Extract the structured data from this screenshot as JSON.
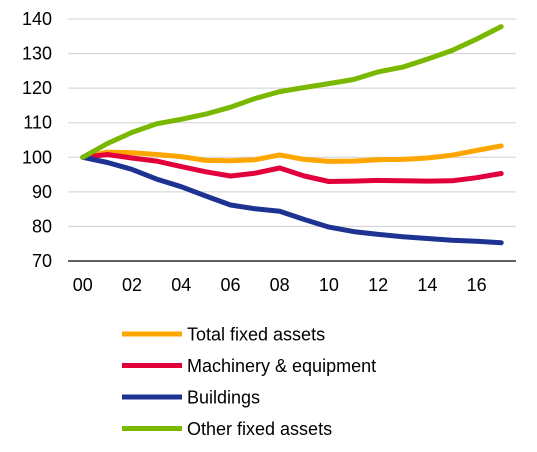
{
  "chart_data": {
    "type": "line",
    "title": "",
    "xlabel": "",
    "ylabel": "",
    "x": [
      0,
      1,
      2,
      3,
      4,
      5,
      6,
      7,
      8,
      9,
      10,
      11,
      12,
      13,
      14,
      15,
      16,
      17
    ],
    "x_tick_values": [
      0,
      2,
      4,
      6,
      8,
      10,
      12,
      14,
      16
    ],
    "x_tick_labels": [
      "00",
      "02",
      "04",
      "06",
      "08",
      "10",
      "12",
      "14",
      "16"
    ],
    "xlim": [
      -0.6,
      17.6
    ],
    "y_ticks": [
      70,
      80,
      90,
      100,
      110,
      120,
      130,
      140
    ],
    "ylim": [
      70,
      140
    ],
    "grid": "horizontal",
    "legend_position": "bottom",
    "series": [
      {
        "name": "Total fixed assets",
        "color": "#FFA500",
        "values": [
          100,
          101.5,
          101.3,
          100.8,
          100.2,
          99.1,
          99.0,
          99.3,
          100.7,
          99.4,
          98.8,
          98.9,
          99.3,
          99.4,
          99.8,
          100.6,
          102.0,
          103.3
        ]
      },
      {
        "name": "Machinery & equipment",
        "color": "#E2003C",
        "values": [
          100,
          100.8,
          99.8,
          98.9,
          97.3,
          95.8,
          94.6,
          95.4,
          96.9,
          94.6,
          93.0,
          93.1,
          93.3,
          93.2,
          93.1,
          93.2,
          94.1,
          95.3
        ]
      },
      {
        "name": "Buildings",
        "color": "#1E3391",
        "values": [
          100,
          98.5,
          96.5,
          93.7,
          91.5,
          88.8,
          86.2,
          85.1,
          84.4,
          82.0,
          79.8,
          78.5,
          77.7,
          77.0,
          76.5,
          76.0,
          75.7,
          75.3
        ]
      },
      {
        "name": "Other fixed assets",
        "color": "#7AB800",
        "values": [
          100,
          104.0,
          107.2,
          109.7,
          111.0,
          112.5,
          114.5,
          117.0,
          119.0,
          120.2,
          121.3,
          122.5,
          124.7,
          126.1,
          128.4,
          130.9,
          134.2,
          137.8
        ]
      }
    ]
  }
}
